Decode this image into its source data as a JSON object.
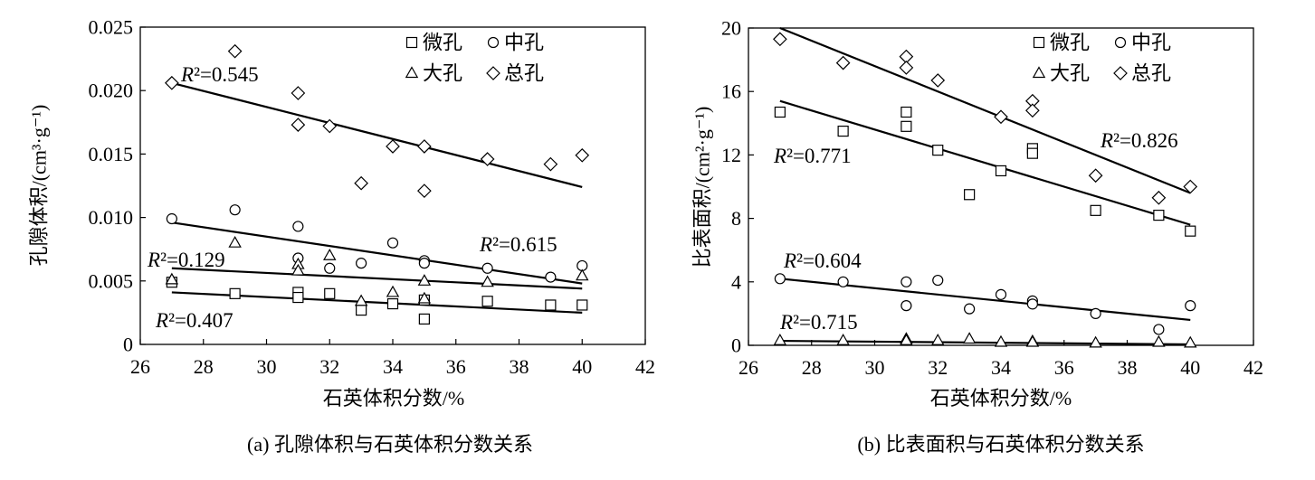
{
  "colors": {
    "ink": "#000000",
    "marker_fill": "#ffffff"
  },
  "chart_data": [
    {
      "type": "scatter",
      "caption": "(a) 孔隙体积与石英体积分数关系",
      "xlabel": "石英体积分数/%",
      "ylabel": "孔隙体积/(cm³·g⁻¹)",
      "xlim": [
        26,
        42
      ],
      "ylim": [
        0,
        0.025
      ],
      "xticks": [
        "26",
        "28",
        "30",
        "32",
        "34",
        "36",
        "38",
        "40",
        "42"
      ],
      "yticks": [
        "0",
        "0.005",
        "0.010",
        "0.015",
        "0.020",
        "0.025"
      ],
      "grid": false,
      "legend_position": "top-right",
      "series": [
        {
          "name": "微孔",
          "marker": "square",
          "points": [
            [
              27,
              0.0049
            ],
            [
              29,
              0.004
            ],
            [
              31,
              0.0041
            ],
            [
              31,
              0.0037
            ],
            [
              32,
              0.004
            ],
            [
              33,
              0.0027
            ],
            [
              34,
              0.0032
            ],
            [
              35,
              0.0035
            ],
            [
              35,
              0.002
            ],
            [
              37,
              0.0034
            ],
            [
              39,
              0.0031
            ],
            [
              40,
              0.0031
            ]
          ],
          "trendline": {
            "x": [
              27,
              40
            ],
            "y": [
              0.0041,
              0.0025
            ]
          },
          "r2_label": "R²=0.407"
        },
        {
          "name": "中孔",
          "marker": "circle",
          "points": [
            [
              27,
              0.0099
            ],
            [
              29,
              0.0106
            ],
            [
              31,
              0.0093
            ],
            [
              31,
              0.0068
            ],
            [
              32,
              0.006
            ],
            [
              33,
              0.0064
            ],
            [
              34,
              0.008
            ],
            [
              35,
              0.0066
            ],
            [
              35,
              0.0064
            ],
            [
              37,
              0.006
            ],
            [
              39,
              0.0053
            ],
            [
              40,
              0.0062
            ]
          ],
          "trendline": {
            "x": [
              27,
              40
            ],
            "y": [
              0.0096,
              0.0048
            ]
          },
          "r2_label": "R²=0.615"
        },
        {
          "name": "大孔",
          "marker": "triangle",
          "points": [
            [
              27,
              0.0051
            ],
            [
              29,
              0.008
            ],
            [
              31,
              0.0063
            ],
            [
              31,
              0.0058
            ],
            [
              32,
              0.007
            ],
            [
              33,
              0.0034
            ],
            [
              34,
              0.0041
            ],
            [
              35,
              0.005
            ],
            [
              35,
              0.0036
            ],
            [
              37,
              0.0049
            ],
            [
              40,
              0.0054
            ]
          ],
          "trendline": {
            "x": [
              27,
              40
            ],
            "y": [
              0.006,
              0.0044
            ]
          },
          "r2_label": "R²=0.129"
        },
        {
          "name": "总孔",
          "marker": "diamond",
          "points": [
            [
              27,
              0.0206
            ],
            [
              29,
              0.0231
            ],
            [
              31,
              0.0198
            ],
            [
              31,
              0.0173
            ],
            [
              32,
              0.0172
            ],
            [
              33,
              0.0127
            ],
            [
              34,
              0.0156
            ],
            [
              35,
              0.0156
            ],
            [
              35,
              0.0121
            ],
            [
              37,
              0.0146
            ],
            [
              39,
              0.0142
            ],
            [
              40,
              0.0149
            ]
          ],
          "trendline": {
            "x": [
              27,
              40
            ],
            "y": [
              0.0206,
              0.0124
            ]
          },
          "r2_label": "R²=0.545"
        }
      ]
    },
    {
      "type": "scatter",
      "caption": "(b) 比表面积与石英体积分数关系",
      "xlabel": "石英体积分数/%",
      "ylabel": "比表面积/(cm²·g⁻¹)",
      "xlim": [
        26,
        42
      ],
      "ylim": [
        0,
        20
      ],
      "xticks": [
        "26",
        "28",
        "30",
        "32",
        "34",
        "36",
        "38",
        "40",
        "42"
      ],
      "yticks": [
        "0",
        "4",
        "8",
        "12",
        "16",
        "20"
      ],
      "grid": false,
      "legend_position": "top-right",
      "series": [
        {
          "name": "微孔",
          "marker": "square",
          "points": [
            [
              27,
              14.7
            ],
            [
              29,
              13.5
            ],
            [
              31,
              14.7
            ],
            [
              31,
              13.8
            ],
            [
              32,
              12.3
            ],
            [
              33,
              9.5
            ],
            [
              34,
              11.0
            ],
            [
              35,
              12.4
            ],
            [
              35,
              12.1
            ],
            [
              37,
              8.5
            ],
            [
              39,
              8.2
            ],
            [
              40,
              7.2
            ]
          ],
          "trendline": {
            "x": [
              27,
              40
            ],
            "y": [
              15.4,
              7.6
            ]
          },
          "r2_label": "R²=0.771"
        },
        {
          "name": "中孔",
          "marker": "circle",
          "points": [
            [
              27,
              4.2
            ],
            [
              29,
              4.0
            ],
            [
              31,
              4.0
            ],
            [
              31,
              2.5
            ],
            [
              32,
              4.1
            ],
            [
              33,
              2.3
            ],
            [
              34,
              3.2
            ],
            [
              35,
              2.8
            ],
            [
              35,
              2.6
            ],
            [
              37,
              2.0
            ],
            [
              39,
              1.0
            ],
            [
              40,
              2.5
            ]
          ],
          "trendline": {
            "x": [
              27,
              40
            ],
            "y": [
              4.2,
              1.6
            ]
          },
          "r2_label": "R²=0.604"
        },
        {
          "name": "大孔",
          "marker": "triangle",
          "points": [
            [
              27,
              0.3
            ],
            [
              29,
              0.3
            ],
            [
              31,
              0.4
            ],
            [
              31,
              0.3
            ],
            [
              32,
              0.3
            ],
            [
              33,
              0.4
            ],
            [
              34,
              0.2
            ],
            [
              35,
              0.25
            ],
            [
              35,
              0.2
            ],
            [
              37,
              0.15
            ],
            [
              39,
              0.2
            ],
            [
              40,
              0.15
            ]
          ],
          "trendline": {
            "x": [
              27,
              40
            ],
            "y": [
              0.28,
              0.06
            ]
          },
          "r2_label": "R²=0.715"
        },
        {
          "name": "总孔",
          "marker": "diamond",
          "points": [
            [
              27,
              19.3
            ],
            [
              29,
              17.8
            ],
            [
              31,
              18.2
            ],
            [
              31,
              17.5
            ],
            [
              32,
              16.7
            ],
            [
              34,
              14.4
            ],
            [
              35,
              15.4
            ],
            [
              35,
              14.8
            ],
            [
              37,
              10.7
            ],
            [
              39,
              9.3
            ],
            [
              40,
              10.0
            ]
          ],
          "trendline": {
            "x": [
              27,
              40
            ],
            "y": [
              20.0,
              9.6
            ]
          },
          "r2_label": "R²=0.826"
        }
      ]
    }
  ]
}
